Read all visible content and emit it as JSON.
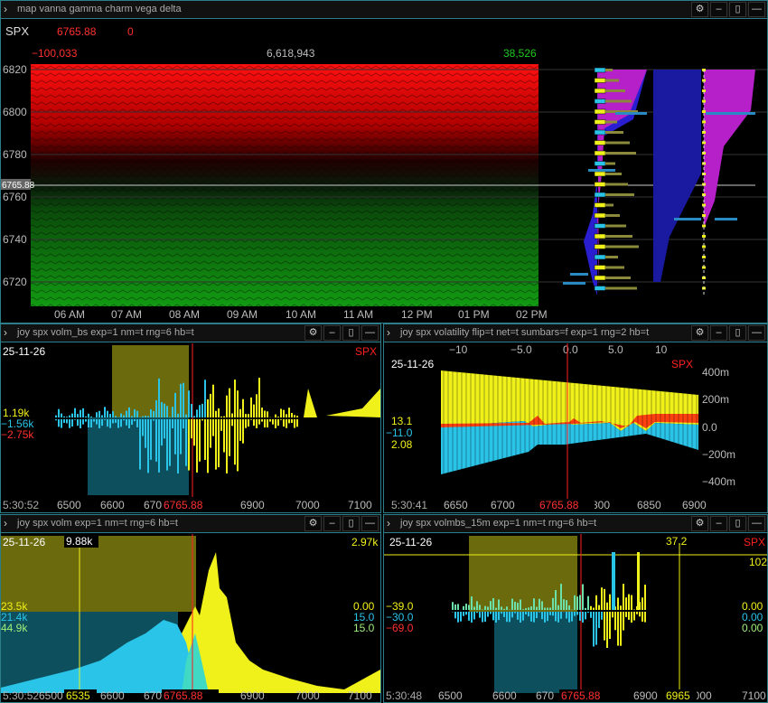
{
  "top": {
    "title": "map vanna gamma charm vega delta",
    "symbol": "SPX",
    "price": "6765.88",
    "change": "0",
    "min": "−100,033",
    "mid": "6,618,943",
    "max": "38,526",
    "cursor": "6765.88",
    "y_ticks": [
      "6820",
      "6800",
      "6780",
      "6760",
      "6740",
      "6720"
    ],
    "x_ticks": [
      "06 AM",
      "07 AM",
      "08 AM",
      "09 AM",
      "10 AM",
      "11 AM",
      "12 PM",
      "01 PM",
      "02 PM"
    ]
  },
  "p1": {
    "title": "joy spx volm_bs exp=1 nm=t rng=6 hb=t",
    "date": "25-11-26",
    "sym": "SPX",
    "v1": "1.19k",
    "v2": "−1.56k",
    "v3": "−2.75k",
    "time": "5:30:52",
    "price": "6765.88",
    "x_ticks": [
      "6500",
      "6600",
      "670",
      "6900",
      "7000",
      "7100"
    ]
  },
  "p2": {
    "title": "joy spx volatility flip=t net=t sumbars=f exp=1 rng=2 hb=t",
    "date": "25-11-26",
    "sym": "SPX",
    "v1": "13.1",
    "v2": "−11.0",
    "v3": "2.08",
    "time": "5:30:41",
    "price": "6765.88",
    "top_ticks": [
      "−10",
      "−5.0",
      "0.0",
      "5.0",
      "10"
    ],
    "y_ticks": [
      "400m",
      "200m",
      "0.0",
      "−200m",
      "−400m"
    ],
    "x_ticks": [
      "6650",
      "6700",
      "800",
      "6850",
      "6900"
    ]
  },
  "p3": {
    "title": "joy spx volm exp=1 nm=t rng=6 hb=t",
    "date": "25-11-26",
    "sym": "9.88k",
    "topr": "2.97k",
    "l1": "23.5k",
    "l2": "21.4k",
    "l3": "44.9k",
    "r1": "0.00",
    "r2": "15.0",
    "r3": "15.0",
    "time": "5:30:52",
    "strike": "6535",
    "price": "6765.88",
    "x_ticks": [
      "6500",
      "6600",
      "670",
      "6900",
      "7000",
      "7100"
    ]
  },
  "p4": {
    "title": "joy spx volmbs_15m exp=1 nm=t rng=6 hb=t",
    "date": "25-11-26",
    "sym": "SPX",
    "top": "37.2",
    "right": "102",
    "l1": "−39.0",
    "l2": "−30.0",
    "l3": "−69.0",
    "r1": "0.00",
    "r2": "0.00",
    "r3": "0.00",
    "time": "5:30:48",
    "strike": "6965",
    "price": "6765.88",
    "x_ticks": [
      "6500",
      "6600",
      "670",
      "6900",
      "7000",
      "7100"
    ]
  },
  "colors": {
    "frame": "#2b7f8a",
    "red": "#ff2a2a",
    "green": "#1a8c1a",
    "yellow": "#f0f01a",
    "cyan": "#29c4e8"
  }
}
